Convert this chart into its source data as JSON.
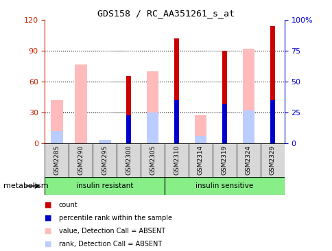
{
  "title": "GDS158 / RC_AA351261_s_at",
  "samples": [
    "GSM2285",
    "GSM2290",
    "GSM2295",
    "GSM2300",
    "GSM2305",
    "GSM2310",
    "GSM2314",
    "GSM2319",
    "GSM2324",
    "GSM2329"
  ],
  "red_bars": [
    0,
    0,
    0,
    65,
    0,
    102,
    0,
    90,
    0,
    114
  ],
  "pink_bars": [
    42,
    77,
    0,
    0,
    70,
    0,
    27,
    0,
    92,
    0
  ],
  "blue_bars": [
    0,
    0,
    0,
    27,
    0,
    42,
    0,
    38,
    0,
    42
  ],
  "lightblue_bars": [
    12,
    0,
    3,
    0,
    30,
    0,
    7,
    0,
    32,
    0
  ],
  "ylim": [
    0,
    120
  ],
  "yticks": [
    0,
    30,
    60,
    90,
    120
  ],
  "y2ticks_labels": [
    "0",
    "25",
    "50",
    "75",
    "100%"
  ],
  "y2ticks_vals": [
    0,
    30,
    60,
    90,
    120
  ],
  "grid_vals": [
    30,
    60,
    90
  ],
  "ylabel_color": "#cc2200",
  "y2label_color": "#0000cc",
  "group1_label": "insulin resistant",
  "group2_label": "insulin sensitive",
  "legend_items": [
    {
      "label": "count",
      "color": "#cc0000"
    },
    {
      "label": "percentile rank within the sample",
      "color": "#0000cc"
    },
    {
      "label": "value, Detection Call = ABSENT",
      "color": "#ffbbbb"
    },
    {
      "label": "rank, Detection Call = ABSENT",
      "color": "#bbccff"
    }
  ],
  "metabolism_label": "metabolism"
}
